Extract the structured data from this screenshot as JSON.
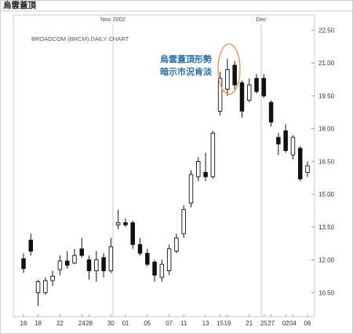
{
  "page_title": "烏雲蓋頂",
  "chart_data": {
    "type": "candlestick",
    "title": "BROADCOM (BRCM) DAILY CHART",
    "annotation_lines": [
      "烏雲蓋頂形勢",
      "暗示市況肯淡"
    ],
    "month_markers": [
      {
        "label": "Nov 2002",
        "at_index": 9
      },
      {
        "label": "Dec",
        "at_index": 21
      }
    ],
    "ylim": [
      9.4,
      23.2
    ],
    "y_ticks": [
      "22.50",
      "21.00",
      "19.50",
      "18.00",
      "16.50",
      "15.00",
      "13.50",
      "12.00",
      "10.50"
    ],
    "x_tick_labels": [
      {
        "label": "16",
        "index": 0
      },
      {
        "label": "18",
        "index": 1
      },
      {
        "label": "22",
        "index": 3
      },
      {
        "label": "24",
        "index": 5
      },
      {
        "label": "28",
        "index": 6
      },
      {
        "label": "30",
        "index": 8
      },
      {
        "label": "01",
        "index": 9
      },
      {
        "label": "05",
        "index": 11
      },
      {
        "label": "07",
        "index": 13
      },
      {
        "label": "11",
        "index": 14
      },
      {
        "label": "13",
        "index": 16
      },
      {
        "label": "15",
        "index": 17
      },
      {
        "label": "19",
        "index": 18
      },
      {
        "label": "21",
        "index": 20
      },
      {
        "label": "25",
        "index": 21
      },
      {
        "label": "27",
        "index": 22
      },
      {
        "label": "02",
        "index": 23
      },
      {
        "label": "04",
        "index": 24
      },
      {
        "label": "06",
        "index": 25
      }
    ],
    "candles": [
      {
        "open": 12.05,
        "close": 11.6,
        "high": 12.3,
        "low": 11.4
      },
      {
        "open": 12.9,
        "close": 12.4,
        "high": 13.2,
        "low": 12.2
      },
      {
        "open": 10.5,
        "close": 11.0,
        "high": 11.1,
        "low": 9.9
      },
      {
        "open": 10.5,
        "close": 11.05,
        "high": 11.2,
        "low": 10.4
      },
      {
        "open": 11.05,
        "close": 11.25,
        "high": 11.5,
        "low": 10.8
      },
      {
        "open": 11.55,
        "close": 11.95,
        "high": 12.2,
        "low": 11.3
      },
      {
        "open": 11.95,
        "close": 11.75,
        "high": 12.4,
        "low": 11.6
      },
      {
        "open": 11.85,
        "close": 12.2,
        "high": 12.5,
        "low": 11.8
      },
      {
        "open": 12.5,
        "close": 12.2,
        "high": 13.0,
        "low": 12.1
      },
      {
        "open": 12.0,
        "close": 11.5,
        "high": 12.2,
        "low": 11.1
      },
      {
        "open": 11.5,
        "close": 12.0,
        "high": 12.4,
        "low": 11.0
      },
      {
        "open": 12.1,
        "close": 11.5,
        "high": 12.3,
        "low": 11.2
      },
      {
        "open": 11.5,
        "close": 12.6,
        "high": 13.0,
        "low": 11.4
      },
      {
        "open": 13.6,
        "close": 13.7,
        "high": 14.3,
        "low": 13.4
      },
      {
        "open": 13.7,
        "close": 13.6,
        "high": 13.9,
        "low": 13.5
      },
      {
        "open": 13.7,
        "close": 12.7,
        "high": 13.8,
        "low": 12.5
      },
      {
        "open": 12.7,
        "close": 12.3,
        "high": 13.0,
        "low": 12.2
      },
      {
        "open": 12.3,
        "close": 11.8,
        "high": 12.5,
        "low": 11.7
      },
      {
        "open": 11.9,
        "close": 11.3,
        "high": 12.0,
        "low": 11.0
      },
      {
        "open": 11.2,
        "close": 11.8,
        "high": 12.0,
        "low": 11.0
      },
      {
        "open": 11.5,
        "close": 12.5,
        "high": 12.7,
        "low": 11.3
      },
      {
        "open": 12.4,
        "close": 13.0,
        "high": 13.2,
        "low": 12.3
      },
      {
        "open": 13.2,
        "close": 14.3,
        "high": 14.5,
        "low": 13.0
      },
      {
        "open": 14.6,
        "close": 15.9,
        "high": 16.1,
        "low": 14.4
      },
      {
        "open": 15.8,
        "close": 16.5,
        "high": 16.7,
        "low": 15.6
      },
      {
        "open": 16.0,
        "close": 15.8,
        "high": 16.9,
        "low": 15.6
      },
      {
        "open": 15.8,
        "close": 17.8,
        "high": 17.9,
        "low": 15.7
      },
      {
        "open": 18.8,
        "close": 20.3,
        "high": 20.6,
        "low": 18.6
      },
      {
        "open": 19.8,
        "close": 20.7,
        "high": 21.2,
        "low": 19.5
      },
      {
        "open": 20.9,
        "close": 20.0,
        "high": 21.1,
        "low": 19.8
      },
      {
        "open": 20.1,
        "close": 18.8,
        "high": 20.2,
        "low": 18.5
      },
      {
        "open": 19.3,
        "close": 20.0,
        "high": 20.3,
        "low": 19.2
      },
      {
        "open": 20.3,
        "close": 19.7,
        "high": 20.5,
        "low": 19.6
      },
      {
        "open": 20.3,
        "close": 19.5,
        "high": 20.5,
        "low": 19.4
      },
      {
        "open": 19.2,
        "close": 18.3,
        "high": 19.3,
        "low": 18.1
      },
      {
        "open": 17.6,
        "close": 17.3,
        "high": 17.8,
        "low": 16.8
      },
      {
        "open": 17.9,
        "close": 17.0,
        "high": 18.2,
        "low": 16.9
      },
      {
        "open": 16.8,
        "close": 17.6,
        "high": 17.7,
        "low": 16.6
      },
      {
        "open": 17.1,
        "close": 15.7,
        "high": 17.2,
        "low": 15.6
      },
      {
        "open": 16.0,
        "close": 16.3,
        "high": 16.5,
        "low": 15.8
      }
    ]
  }
}
